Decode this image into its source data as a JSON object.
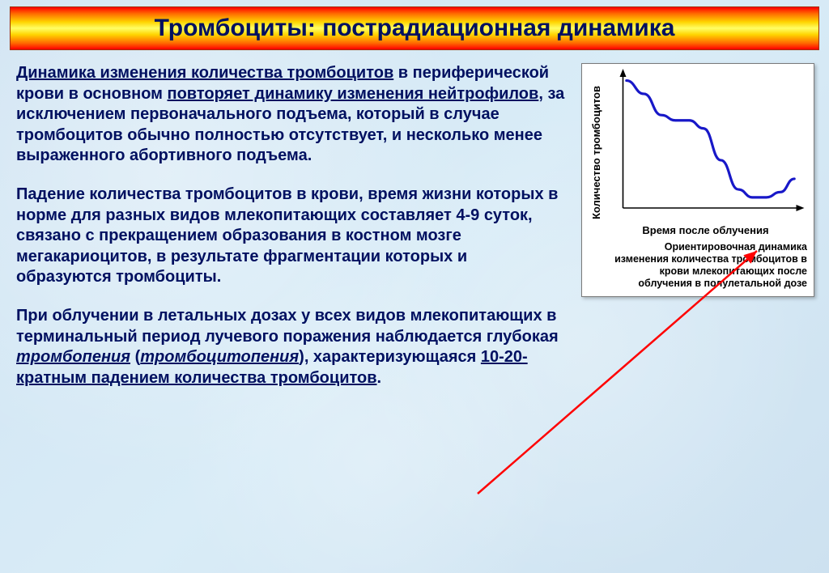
{
  "title": "Тромбоциты: пострадиационная динамика",
  "paragraphs": {
    "p1_a": "Динамика изменения количества тромбоцитов",
    "p1_b": " в периферической крови в основном ",
    "p1_c": "повторяет динамику изменения нейтрофилов",
    "p1_d": ", за исключением первоначального подъема, который в случае тромбоцитов обычно полностью отсутствует, и несколько менее выраженного абортивного подъема.",
    "p2": "Падение количества тромбоцитов в крови, время жизни которых в норме для разных видов млекопитающих составляет 4-9 суток, связано с прекращением образования в костном мозге мегакариоцитов, в результате фрагментации которых и образуются тромбоциты.",
    "p3_a": "При облучении в летальных дозах у всех видов млекопитающих в терминальный период лучевого поражения наблюдается глубокая ",
    "p3_b": "тромбопения",
    "p3_c": " (",
    "p3_d": "тромбоцитопения",
    "p3_e": "), характеризующаяся ",
    "p3_f": "10-20-кратным падением количества тромбоцитов",
    "p3_g": "."
  },
  "figure": {
    "type": "line",
    "y_label": "Количество тромбоцитов",
    "x_label": "Время после облучения",
    "caption": "Ориентировочная динамика изменения количества тромбоцитов в крови млекопитающих после облучения в полулетальной дозе",
    "line_color": "#1818c8",
    "line_width": 3.2,
    "axis_color": "#000000",
    "background_color": "#ffffff",
    "xlim": [
      0,
      100
    ],
    "ylim": [
      0,
      100
    ],
    "points": [
      {
        "x": 2,
        "y": 96
      },
      {
        "x": 12,
        "y": 86
      },
      {
        "x": 22,
        "y": 70
      },
      {
        "x": 30,
        "y": 66
      },
      {
        "x": 38,
        "y": 66
      },
      {
        "x": 46,
        "y": 60
      },
      {
        "x": 56,
        "y": 36
      },
      {
        "x": 66,
        "y": 14
      },
      {
        "x": 74,
        "y": 8
      },
      {
        "x": 82,
        "y": 8
      },
      {
        "x": 90,
        "y": 12
      },
      {
        "x": 98,
        "y": 22
      }
    ]
  },
  "arrow": {
    "color": "#ff0000",
    "width": 2.5
  }
}
